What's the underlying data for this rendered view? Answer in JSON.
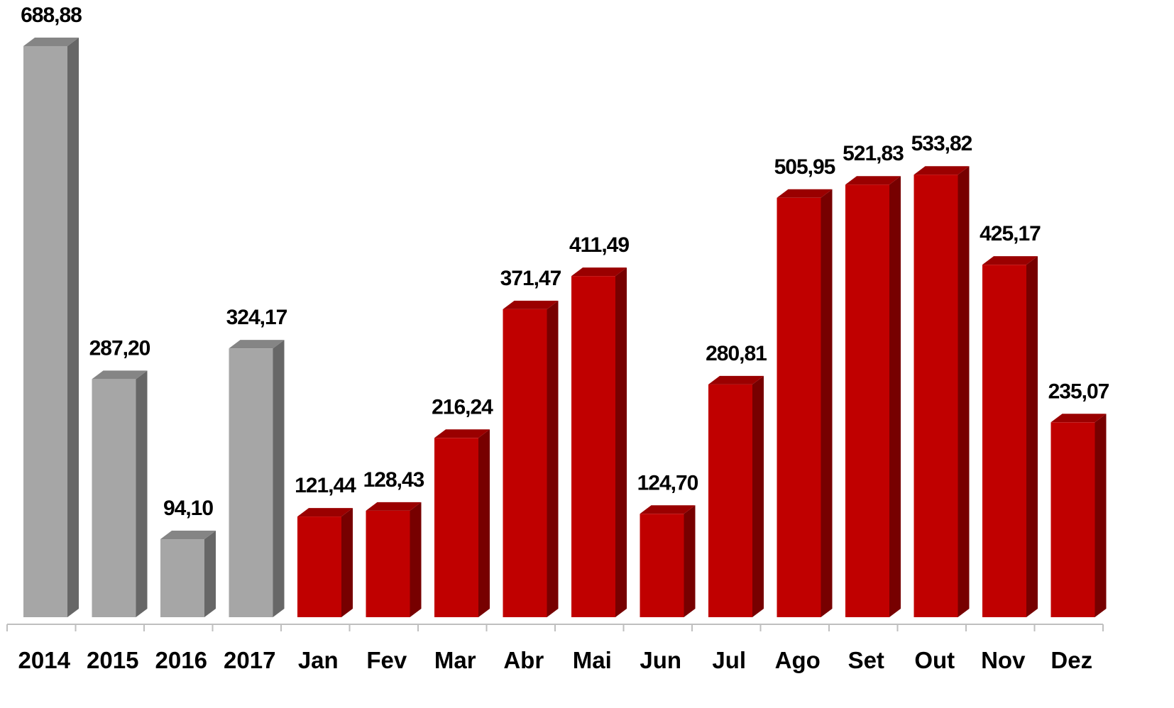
{
  "chart_data": {
    "type": "bar3d",
    "categories": [
      "2014",
      "2015",
      "2016",
      "2017",
      "Jan",
      "Fev",
      "Mar",
      "Abr",
      "Mai",
      "Jun",
      "Jul",
      "Ago",
      "Set",
      "Out",
      "Nov",
      "Dez"
    ],
    "values": [
      688.88,
      287.2,
      94.1,
      324.17,
      121.44,
      128.43,
      216.24,
      371.47,
      411.49,
      124.7,
      280.81,
      505.95,
      521.83,
      533.82,
      425.17,
      235.07
    ],
    "value_labels": [
      "688,88",
      "287,20",
      "94,10",
      "324,17",
      "121,44",
      "128,43",
      "216,24",
      "371,47",
      "411,49",
      "124,70",
      "280,81",
      "505,95",
      "521,83",
      "533,82",
      "425,17",
      "235,07"
    ],
    "colors": [
      "#a6a6a6",
      "#a6a6a6",
      "#a6a6a6",
      "#a6a6a6",
      "#c00000",
      "#c00000",
      "#c00000",
      "#c00000",
      "#c00000",
      "#c00000",
      "#c00000",
      "#c00000",
      "#c00000",
      "#c00000",
      "#c00000",
      "#c00000"
    ]
  }
}
